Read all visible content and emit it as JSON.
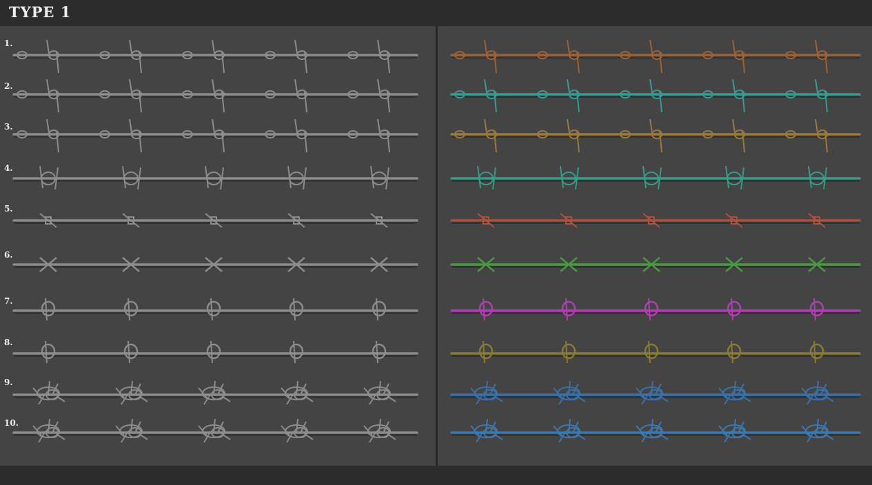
{
  "header": {
    "title": "TYPE 1"
  },
  "rows": [
    {
      "label": "1.",
      "style": "twist-barb",
      "color": "#9a6236"
    },
    {
      "label": "2.",
      "style": "twist-barb",
      "color": "#3a9a92"
    },
    {
      "label": "3.",
      "style": "twist-barb",
      "color": "#9a7a3c"
    },
    {
      "label": "4.",
      "style": "coil",
      "color": "#3a9a8a"
    },
    {
      "label": "5.",
      "style": "clip",
      "color": "#b0503e"
    },
    {
      "label": "6.",
      "style": "cross",
      "color": "#4a9a42"
    },
    {
      "label": "7.",
      "style": "loop",
      "color": "#b040b0"
    },
    {
      "label": "8.",
      "style": "loop-hook",
      "color": "#8a7a36"
    },
    {
      "label": "9.",
      "style": "spiky-coil",
      "color": "#3a70a8"
    },
    {
      "label": "10.",
      "style": "spiky-coil",
      "color": "#3a78b2"
    }
  ],
  "left_color": "#8c8c8c"
}
